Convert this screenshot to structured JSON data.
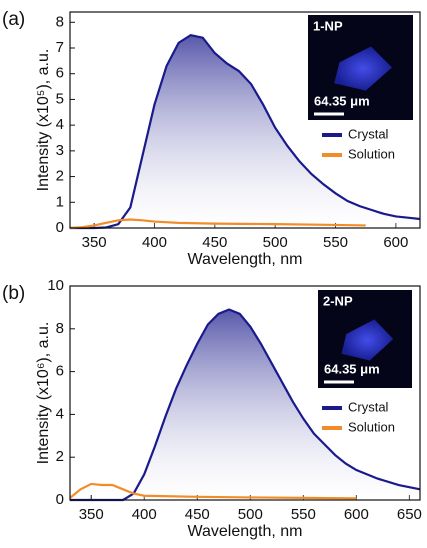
{
  "chart_data": [
    {
      "type": "line",
      "panel_label": "(a)",
      "x_label": "Wavelength, nm",
      "y_label": "Intensity (x10⁵), a.u.",
      "xlim": [
        330,
        620
      ],
      "xticks": [
        350,
        400,
        450,
        500,
        550,
        600
      ],
      "ylim": [
        0,
        8.4
      ],
      "yticks": [
        0,
        1,
        2,
        3,
        4,
        5,
        6,
        7,
        8
      ],
      "inset": {
        "label": "1-NP",
        "scale": "64.35 μm"
      },
      "series": [
        {
          "name": "Crystal",
          "color": "#1a1a8c",
          "fill": true,
          "x": [
            330,
            350,
            360,
            370,
            380,
            390,
            400,
            410,
            420,
            430,
            440,
            450,
            460,
            470,
            480,
            490,
            500,
            510,
            520,
            530,
            540,
            550,
            560,
            570,
            580,
            590,
            600,
            610,
            620
          ],
          "values": [
            0,
            0,
            0.02,
            0.15,
            0.8,
            2.8,
            4.8,
            6.3,
            7.2,
            7.5,
            7.4,
            6.8,
            6.4,
            6.1,
            5.6,
            4.8,
            3.9,
            3.2,
            2.6,
            2.1,
            1.7,
            1.35,
            1.05,
            0.85,
            0.7,
            0.55,
            0.45,
            0.4,
            0.35
          ]
        },
        {
          "name": "Solution",
          "color": "#f28c28",
          "fill": false,
          "x": [
            330,
            340,
            350,
            360,
            370,
            380,
            390,
            400,
            420,
            450,
            500,
            550,
            575
          ],
          "values": [
            0,
            0.03,
            0.1,
            0.2,
            0.3,
            0.33,
            0.3,
            0.25,
            0.2,
            0.17,
            0.15,
            0.12,
            0.1
          ]
        }
      ]
    },
    {
      "type": "line",
      "panel_label": "(b)",
      "x_label": "Wavelength, nm",
      "y_label": "Intensity (x10⁶), a.u.",
      "xlim": [
        330,
        660
      ],
      "xticks": [
        350,
        400,
        450,
        500,
        550,
        600,
        650
      ],
      "ylim": [
        0,
        10
      ],
      "yticks": [
        0,
        2,
        4,
        6,
        8,
        10
      ],
      "inset": {
        "label": "2-NP",
        "scale": "64.35 μm"
      },
      "series": [
        {
          "name": "Crystal",
          "color": "#1a1a8c",
          "fill": true,
          "x": [
            330,
            380,
            390,
            400,
            410,
            420,
            430,
            440,
            450,
            460,
            470,
            480,
            490,
            500,
            510,
            520,
            530,
            540,
            550,
            560,
            570,
            580,
            590,
            600,
            620,
            640,
            660
          ],
          "values": [
            0,
            0,
            0.3,
            1.2,
            2.5,
            3.9,
            5.2,
            6.3,
            7.3,
            8.2,
            8.7,
            8.9,
            8.7,
            8.1,
            7.3,
            6.4,
            5.5,
            4.6,
            3.8,
            3.1,
            2.6,
            2.1,
            1.7,
            1.4,
            1.0,
            0.7,
            0.5
          ]
        },
        {
          "name": "Solution",
          "color": "#f28c28",
          "fill": false,
          "x": [
            330,
            340,
            350,
            360,
            370,
            380,
            390,
            400,
            450,
            500,
            550,
            600
          ],
          "values": [
            0.1,
            0.5,
            0.75,
            0.7,
            0.7,
            0.5,
            0.3,
            0.2,
            0.15,
            0.12,
            0.1,
            0.08
          ]
        }
      ]
    }
  ]
}
